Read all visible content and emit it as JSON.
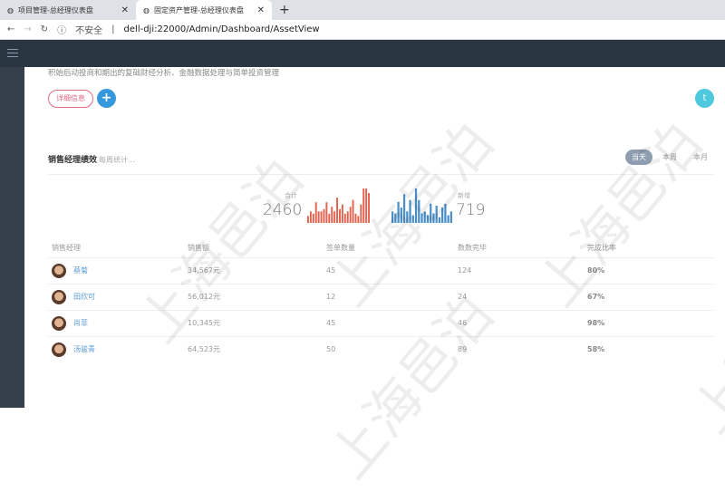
{
  "browser": {
    "tabs": [
      {
        "label": "项目管理-总经理仪表盘"
      },
      {
        "label": "固定资产管理-总经理仪表盘"
      }
    ],
    "insecure": "不安全",
    "url": "dell-dji:22000/Admin/Dashboard/AssetView"
  },
  "page": {
    "description": "积始后动投商和期出的复础财经分析、金融数据处理与简单投资管理",
    "detail_button": "详细信息",
    "plus": "+",
    "twitter": "t"
  },
  "portlet": {
    "title": "销售经理绩效",
    "subtitle": "每周统计...",
    "ranges": [
      "当天",
      "本周",
      "本月"
    ]
  },
  "stats": {
    "total_label": "合计",
    "total": "2460",
    "new_label": "新增",
    "new": "719"
  },
  "chart_data": [
    {
      "type": "bar",
      "color": "#e5604d",
      "values": [
        3,
        5,
        4,
        9,
        5,
        5,
        6,
        9,
        4,
        7,
        5,
        11,
        6,
        8,
        4,
        5,
        7,
        10,
        4,
        3,
        8,
        15,
        15,
        13
      ]
    },
    {
      "type": "bar",
      "color": "#4a8fc9",
      "values": [
        6,
        5,
        11,
        8,
        15,
        6,
        12,
        4,
        18,
        12,
        5,
        6,
        4,
        10,
        5,
        9,
        3,
        8,
        10,
        4,
        6
      ]
    }
  ],
  "table": {
    "headers": [
      "销售经理",
      "销售额",
      "签单数量",
      "数数完毕",
      "完成比率"
    ],
    "rows": [
      [
        "蔡菊",
        "34,567元",
        "45",
        "124",
        "80%"
      ],
      [
        "田欣可",
        "56,012元",
        "12",
        "24",
        "67%"
      ],
      [
        "肖菲",
        "10,345元",
        "45",
        "46",
        "98%"
      ],
      [
        "汤骏青",
        "64,523元",
        "50",
        "89",
        "58%"
      ]
    ]
  },
  "watermark": "上海邑泊"
}
